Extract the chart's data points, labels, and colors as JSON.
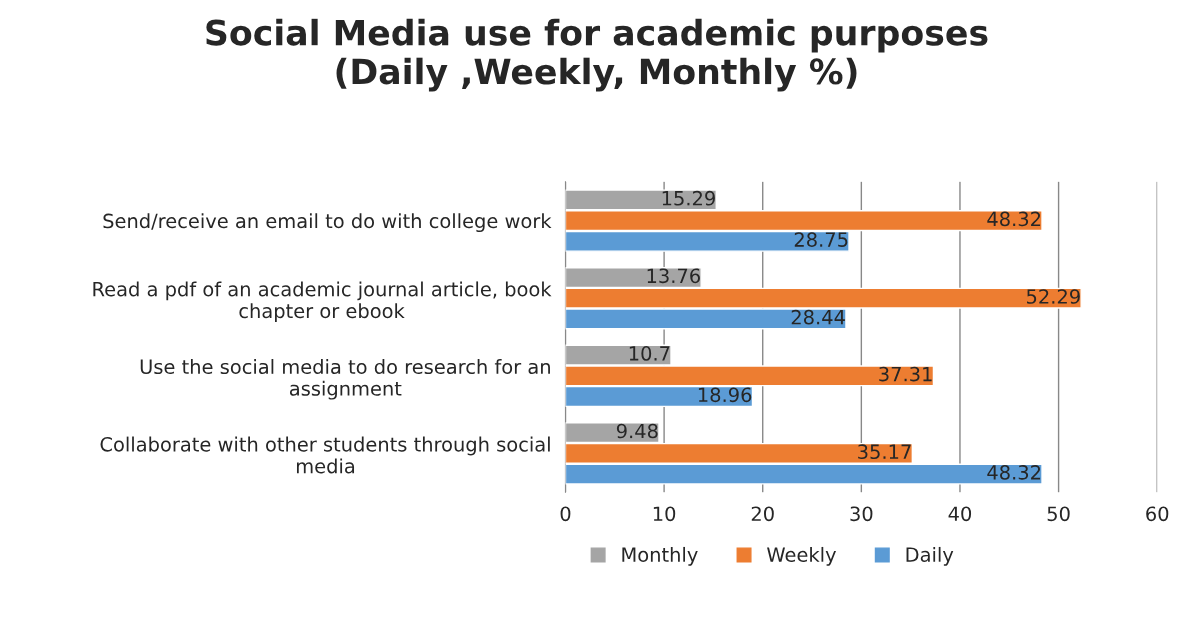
{
  "chart_data": {
    "type": "bar",
    "orientation": "horizontal",
    "title": "Social Media use for academic purposes\n(Daily ,Weekly, Monthly %)",
    "categories": [
      "Send/receive an email to do with college work",
      "Read a pdf of an academic journal article, book\nchapter or ebook",
      "Use the social media to do research for an\nassignment",
      "Collaborate with other students through social\nmedia"
    ],
    "series": [
      {
        "name": "Monthly",
        "color": "#a5a5a5",
        "values": [
          15.29,
          13.76,
          10.7,
          9.48
        ]
      },
      {
        "name": "Weekly",
        "color": "#ed7d31",
        "values": [
          48.32,
          52.29,
          37.31,
          35.17
        ]
      },
      {
        "name": "Daily",
        "color": "#5b9bd5",
        "values": [
          28.75,
          28.44,
          18.96,
          48.32
        ]
      }
    ],
    "xlim": [
      0,
      60
    ],
    "xticks": [
      0,
      10,
      20,
      30,
      40,
      50,
      60
    ],
    "grid": "x",
    "legend": "bottom",
    "data_labels": true
  }
}
